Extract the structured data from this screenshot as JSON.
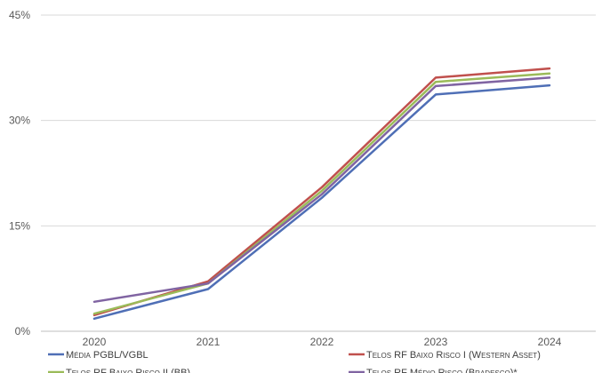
{
  "chart_data": {
    "type": "line",
    "x": [
      "2020",
      "2021",
      "2022",
      "2023",
      "2024"
    ],
    "y_ticks": [
      "0%",
      "15%",
      "30%",
      "45%"
    ],
    "ylim": [
      0,
      45
    ],
    "grid": true,
    "legend_position": "bottom",
    "series": [
      {
        "name": "Média PGBL/VGBL",
        "color": "#4f6fb6",
        "values": [
          1.8,
          6.0,
          19.0,
          33.7,
          35.0
        ]
      },
      {
        "name": "Telos RF Baixo Risco I (Western Asset)",
        "color": "#c0504d",
        "values": [
          2.3,
          7.1,
          20.5,
          36.1,
          37.4
        ]
      },
      {
        "name": "Telos RF Baixo Risco II (BB)",
        "color": "#9bbb59",
        "values": [
          2.5,
          6.8,
          20.0,
          35.5,
          36.7
        ]
      },
      {
        "name": "Telos RF Médio Risco (Bradesco)*",
        "color": "#8064a2",
        "values": [
          4.2,
          6.8,
          19.5,
          34.9,
          36.1
        ]
      }
    ]
  }
}
